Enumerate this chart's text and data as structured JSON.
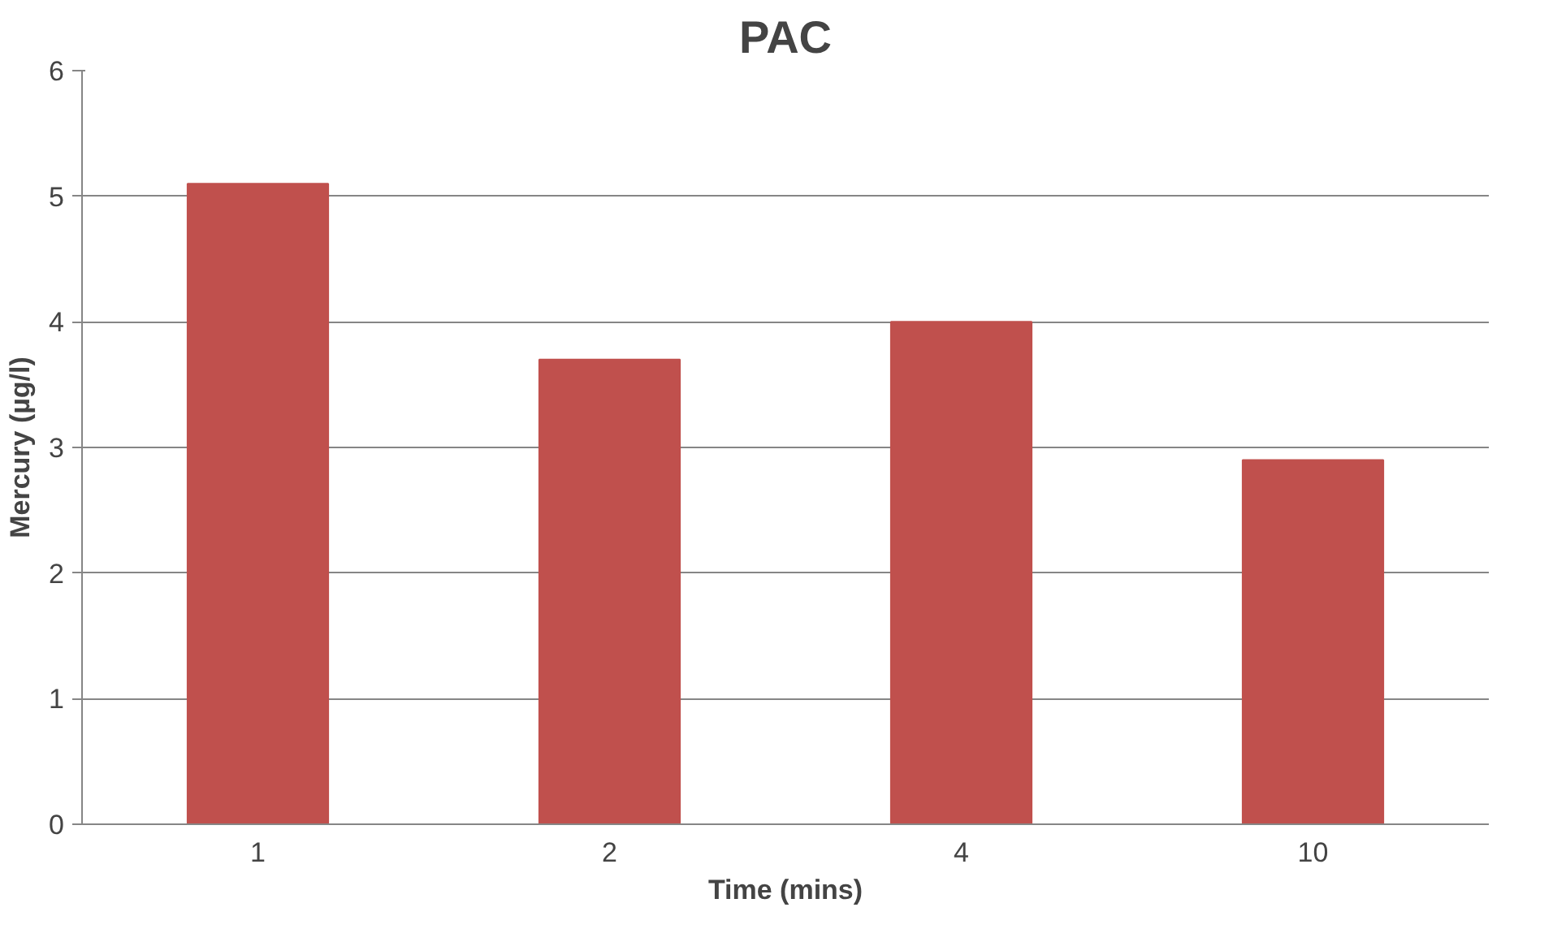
{
  "chart_data": {
    "type": "bar",
    "title": "PAC",
    "xlabel": "Time (mins)",
    "ylabel": "Mercury (µg/l)",
    "categories": [
      "1",
      "2",
      "4",
      "10"
    ],
    "values": [
      5.1,
      3.7,
      4.0,
      2.9
    ],
    "color": "#c0504d",
    "ylim": [
      0,
      6
    ],
    "yticks": [
      0,
      1,
      2,
      3,
      4,
      5,
      6
    ],
    "grid": "y"
  }
}
